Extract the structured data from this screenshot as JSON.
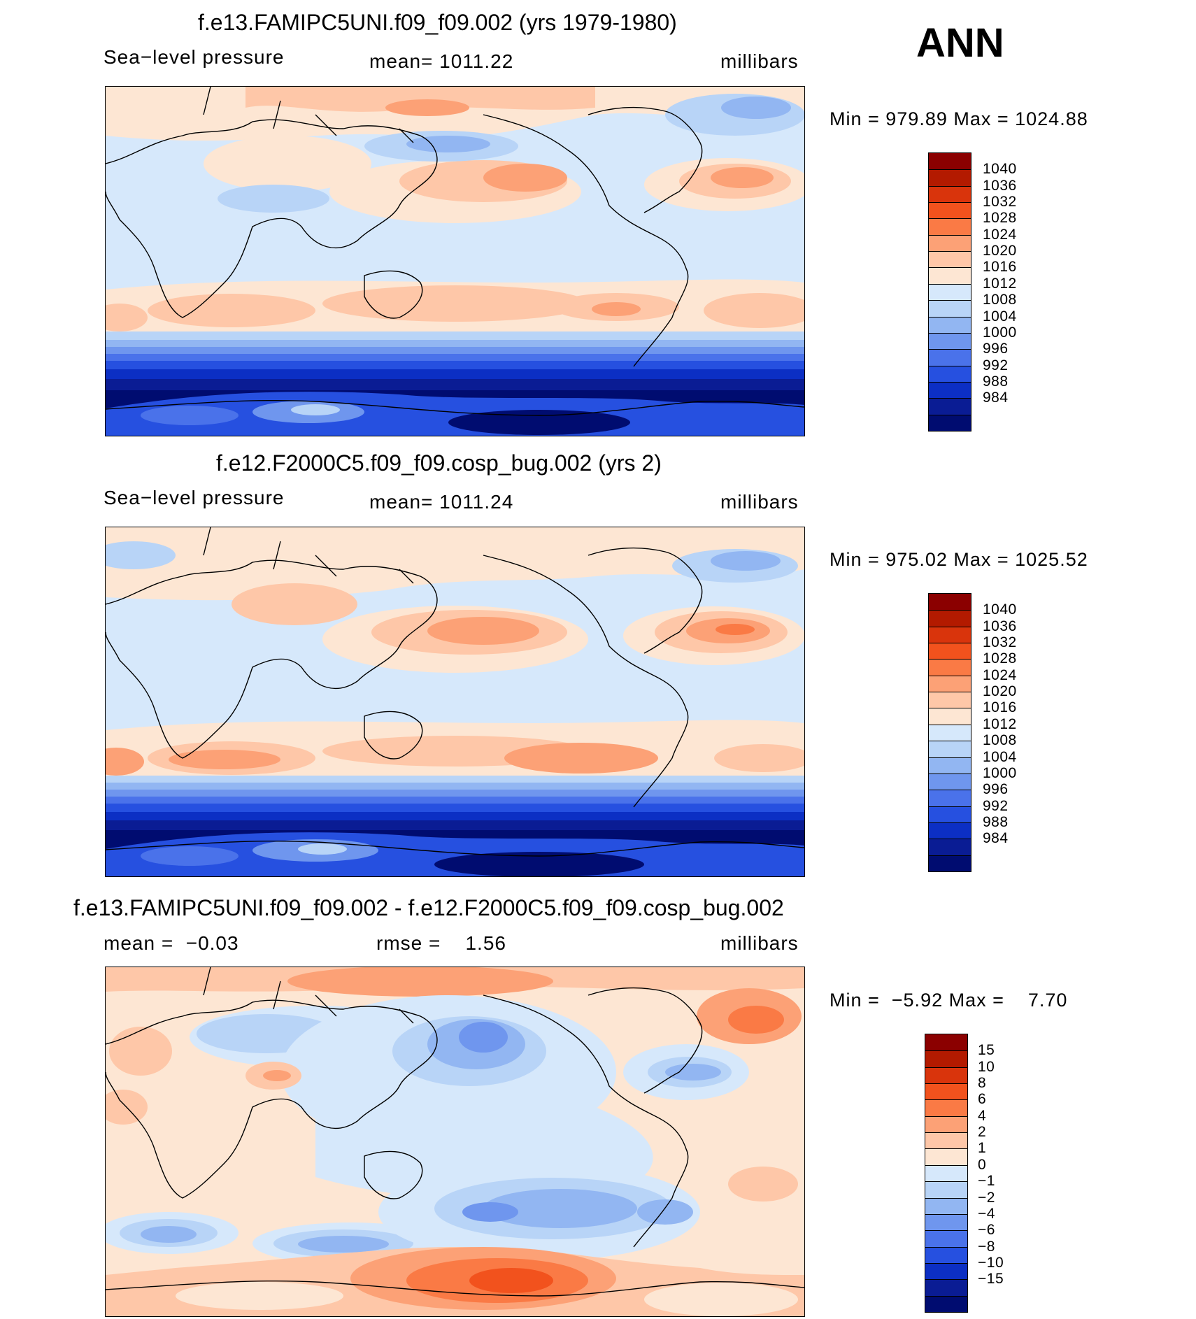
{
  "season": "ANN",
  "panels": [
    {
      "title": "f.e13.FAMIPC5UNI.f09_f09.002 (yrs 1979-1980)",
      "left_label": "Sea−level pressure",
      "center_label": "mean= 1011.22",
      "right_label": "millibars",
      "minmax": "Min = 979.89 Max = 1024.88",
      "colorbar_colors": [
        "#8b0000",
        "#b31a00",
        "#d9340c",
        "#f2521d",
        "#fa7a45",
        "#fca176",
        "#fec7a8",
        "#fde6d3",
        "#d6e8fb",
        "#b8d4f7",
        "#92b6f2",
        "#6f96ee",
        "#4a72ea",
        "#2650e0",
        "#0c2fc4",
        "#0a1c94",
        "#000c70"
      ],
      "colorbar_labels": [
        "1040",
        "1036",
        "1032",
        "1028",
        "1024",
        "1020",
        "1016",
        "1012",
        "1008",
        "1004",
        "1000",
        "996",
        "992",
        "988",
        "984"
      ]
    },
    {
      "title": "f.e12.F2000C5.f09_f09.cosp_bug.002 (yrs 2)",
      "left_label": "Sea−level pressure",
      "center_label": "mean= 1011.24",
      "right_label": "millibars",
      "minmax": "Min = 975.02 Max = 1025.52",
      "colorbar_colors": [
        "#8b0000",
        "#b31a00",
        "#d9340c",
        "#f2521d",
        "#fa7a45",
        "#fca176",
        "#fec7a8",
        "#fde6d3",
        "#d6e8fb",
        "#b8d4f7",
        "#92b6f2",
        "#6f96ee",
        "#4a72ea",
        "#2650e0",
        "#0c2fc4",
        "#0a1c94",
        "#000c70"
      ],
      "colorbar_labels": [
        "1040",
        "1036",
        "1032",
        "1028",
        "1024",
        "1020",
        "1016",
        "1012",
        "1008",
        "1004",
        "1000",
        "996",
        "992",
        "988",
        "984"
      ]
    },
    {
      "title": "f.e13.FAMIPC5UNI.f09_f09.002 - f.e12.F2000C5.f09_f09.cosp_bug.002",
      "left_label": "mean =  −0.03",
      "center_label": "rmse =    1.56",
      "right_label": "millibars",
      "minmax": "Min =  −5.92 Max =    7.70",
      "colorbar_colors": [
        "#8b0000",
        "#b31a00",
        "#d9340c",
        "#f2521d",
        "#fa7a45",
        "#fca176",
        "#fec7a8",
        "#fde6d3",
        "#d6e8fb",
        "#b8d4f7",
        "#92b6f2",
        "#6f96ee",
        "#4a72ea",
        "#2650e0",
        "#0c2fc4",
        "#0a1c94",
        "#000c70"
      ],
      "colorbar_labels": [
        "15",
        "10",
        "8",
        "6",
        "4",
        "2",
        "1",
        "0",
        "−1",
        "−2",
        "−4",
        "−6",
        "−8",
        "−10",
        "−15"
      ]
    }
  ]
}
